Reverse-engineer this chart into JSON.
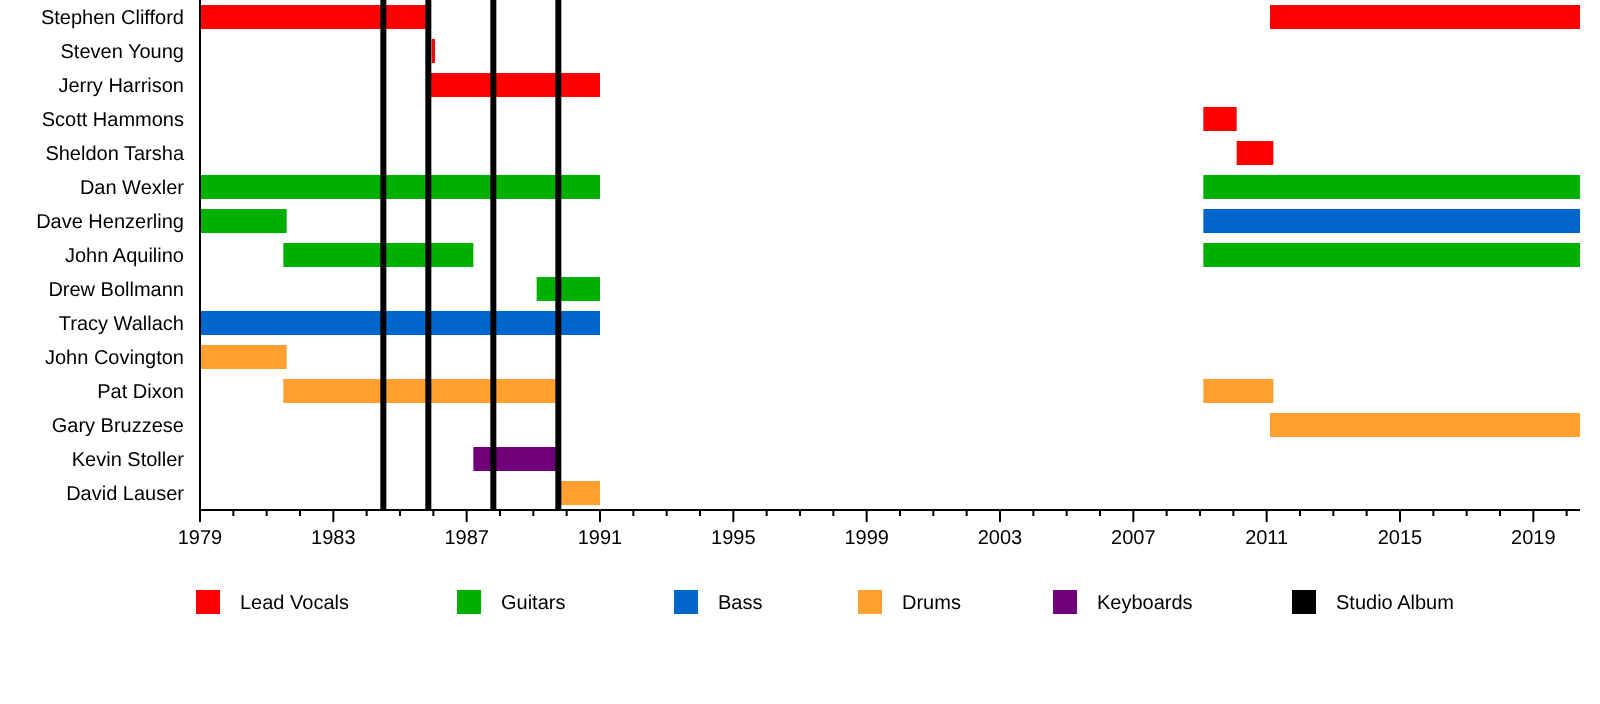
{
  "chart_data": {
    "type": "bar",
    "orientation": "horizontal",
    "legend": "bottom",
    "grid": false,
    "categories": [
      "Stephen Clifford",
      "Steven Young",
      "Jerry Harrison",
      "Scott Hammons",
      "Sheldon Tarsha",
      "Dan Wexler",
      "Dave Henzerling",
      "John Aquilino",
      "Drew Bollmann",
      "Tracy Wallach",
      "John Covington",
      "Pat Dixon",
      "Gary Bruzzese",
      "Kevin Stoller",
      "David Lauser"
    ],
    "xlim": [
      1979,
      2020.4
    ],
    "xticks": [
      1979,
      {
        "value": 1980,
        "label": null
      },
      {
        "value": 1981,
        "label": null
      },
      {
        "value": 1982,
        "label": null
      },
      1983,
      {
        "value": 1984,
        "label": null
      },
      {
        "value": 1985,
        "label": null
      },
      {
        "value": 1986,
        "label": null
      },
      1987,
      {
        "value": 1988,
        "label": null
      },
      {
        "value": 1989,
        "label": null
      },
      {
        "value": 1990,
        "label": null
      },
      1991,
      {
        "value": 1992,
        "label": null
      },
      {
        "value": 1993,
        "label": null
      },
      {
        "value": 1994,
        "label": null
      },
      1995,
      {
        "value": 1996,
        "label": null
      },
      {
        "value": 1997,
        "label": null
      },
      {
        "value": 1998,
        "label": null
      },
      1999,
      {
        "value": 2000,
        "label": null
      },
      {
        "value": 2001,
        "label": null
      },
      {
        "value": 2002,
        "label": null
      },
      2003,
      {
        "value": 2004,
        "label": null
      },
      {
        "value": 2005,
        "label": null
      },
      {
        "value": 2006,
        "label": null
      },
      2007,
      {
        "value": 2008,
        "label": null
      },
      {
        "value": 2009,
        "label": null
      },
      {
        "value": 2010,
        "label": null
      },
      2011,
      {
        "value": 2012,
        "label": null
      },
      {
        "value": 2013,
        "label": null
      },
      {
        "value": 2014,
        "label": null
      },
      2015,
      {
        "value": 2016,
        "label": null
      },
      {
        "value": 2017,
        "label": null
      },
      {
        "value": 2018,
        "label": null
      },
      2019,
      {
        "value": 2020,
        "label": null
      }
    ],
    "series": [
      {
        "name": "Lead Vocals",
        "color": "#ff0000",
        "base": [
          1979,
          1985.95,
          1985.9,
          2009.1,
          2010.1,
          null,
          null,
          null,
          null,
          null,
          null,
          null,
          null,
          null,
          null
        ],
        "values": [
          6.9,
          0.1,
          5.1,
          1.0,
          1.1,
          null,
          null,
          null,
          null,
          null,
          null,
          null,
          null,
          null,
          null
        ]
      },
      {
        "color": "#ff0000",
        "base": [
          2011.1,
          null,
          null,
          null,
          null,
          null,
          null,
          null,
          null,
          null,
          null,
          null,
          null,
          null,
          null
        ],
        "values": [
          9.3,
          null,
          null,
          null,
          null,
          null,
          null,
          null,
          null,
          null,
          null,
          null,
          null,
          null,
          null
        ]
      },
      {
        "name": "Guitars",
        "color": "#00b000",
        "base": [
          null,
          null,
          null,
          null,
          null,
          1979,
          1979,
          1981.5,
          1989.1,
          null,
          null,
          null,
          null,
          null,
          null
        ],
        "values": [
          null,
          null,
          null,
          null,
          null,
          12,
          2.6,
          5.7,
          1.9,
          null,
          null,
          null,
          null,
          null,
          null
        ]
      },
      {
        "color": "#00b000",
        "base": [
          null,
          null,
          null,
          null,
          null,
          2009.1,
          null,
          2009.1,
          null,
          null,
          null,
          null,
          null,
          null,
          null
        ],
        "values": [
          null,
          null,
          null,
          null,
          null,
          11.3,
          null,
          11.3,
          null,
          null,
          null,
          null,
          null,
          null,
          null
        ]
      },
      {
        "name": "Bass",
        "color": "#0066cc",
        "base": [
          null,
          null,
          null,
          null,
          null,
          null,
          2009.1,
          null,
          null,
          1979,
          null,
          null,
          null,
          null,
          null
        ],
        "values": [
          null,
          null,
          null,
          null,
          null,
          null,
          11.3,
          null,
          null,
          12,
          null,
          null,
          null,
          null,
          null
        ]
      },
      {
        "name": "Drums",
        "color": "#ffa02f",
        "base": [
          null,
          null,
          null,
          null,
          null,
          null,
          null,
          null,
          null,
          null,
          1979,
          1981.5,
          2011.1,
          null,
          1989.8
        ],
        "values": [
          null,
          null,
          null,
          null,
          null,
          null,
          null,
          null,
          null,
          null,
          2.6,
          8.3,
          9.3,
          null,
          1.2
        ]
      },
      {
        "color": "#ffa02f",
        "base": [
          null,
          null,
          null,
          null,
          null,
          null,
          null,
          null,
          null,
          null,
          null,
          2009.1,
          null,
          null,
          null
        ],
        "values": [
          null,
          null,
          null,
          null,
          null,
          null,
          null,
          null,
          null,
          null,
          null,
          2.1,
          null,
          null,
          null
        ]
      },
      {
        "name": "Keyboards",
        "color": "#70007a",
        "base": [
          null,
          null,
          null,
          null,
          null,
          null,
          null,
          null,
          null,
          null,
          null,
          null,
          null,
          1987.2,
          null
        ],
        "values": [
          null,
          null,
          null,
          null,
          null,
          null,
          null,
          null,
          null,
          null,
          null,
          null,
          null,
          2.6,
          null
        ]
      }
    ],
    "ref_lines": [
      {
        "axis": "x",
        "value": 1984.5,
        "color": "#000000",
        "label": "Studio Album"
      },
      {
        "axis": "x",
        "value": 1985.85,
        "color": "#000000"
      },
      {
        "axis": "x",
        "value": 1987.8,
        "color": "#000000"
      },
      {
        "axis": "x",
        "value": 1989.75,
        "color": "#000000"
      }
    ]
  }
}
